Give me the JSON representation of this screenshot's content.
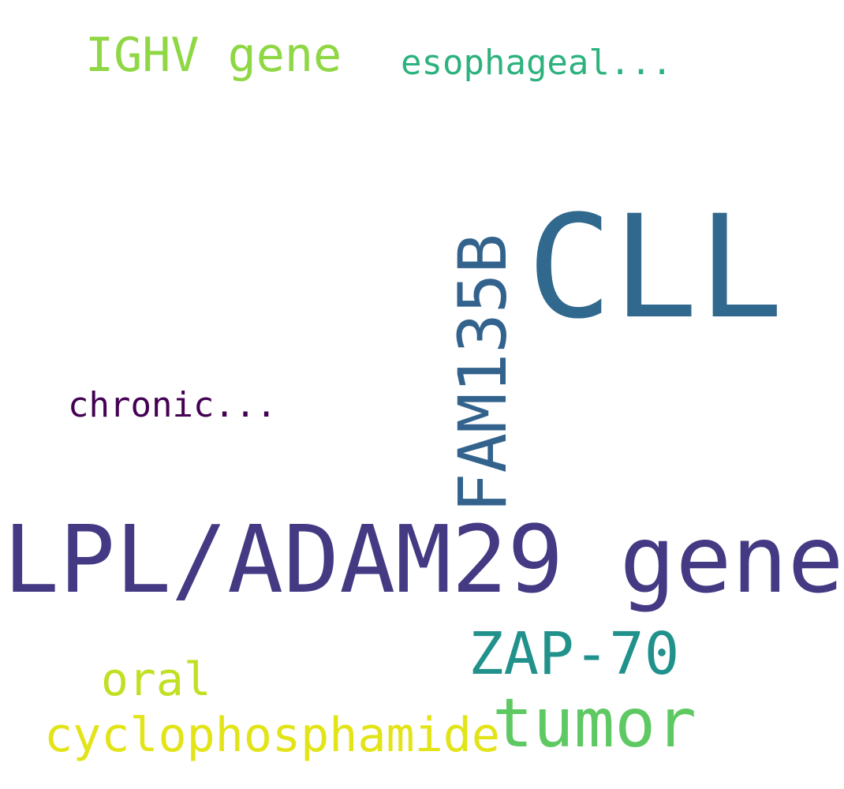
{
  "words": {
    "cll": {
      "text": "CLL",
      "color": "#31688e"
    },
    "lpl_adam29": {
      "text": "LPL/ADAM29 gene",
      "color": "#443a83"
    },
    "fam135b": {
      "text": "FAM135B",
      "color": "#33638d"
    },
    "ighv": {
      "text": "IGHV gene",
      "color": "#8fd744"
    },
    "esophageal": {
      "text": "esophageal...",
      "color": "#2db27d"
    },
    "chronic": {
      "text": "chronic...",
      "color": "#440154"
    },
    "zap70": {
      "text": "ZAP-70",
      "color": "#21918c"
    },
    "oral": {
      "text": "oral",
      "color": "#c2df23"
    },
    "tumor": {
      "text": "tumor",
      "color": "#5ec962"
    },
    "cyclophosphamide": {
      "text": "cyclophosphamide",
      "color": "#e2e418"
    }
  }
}
